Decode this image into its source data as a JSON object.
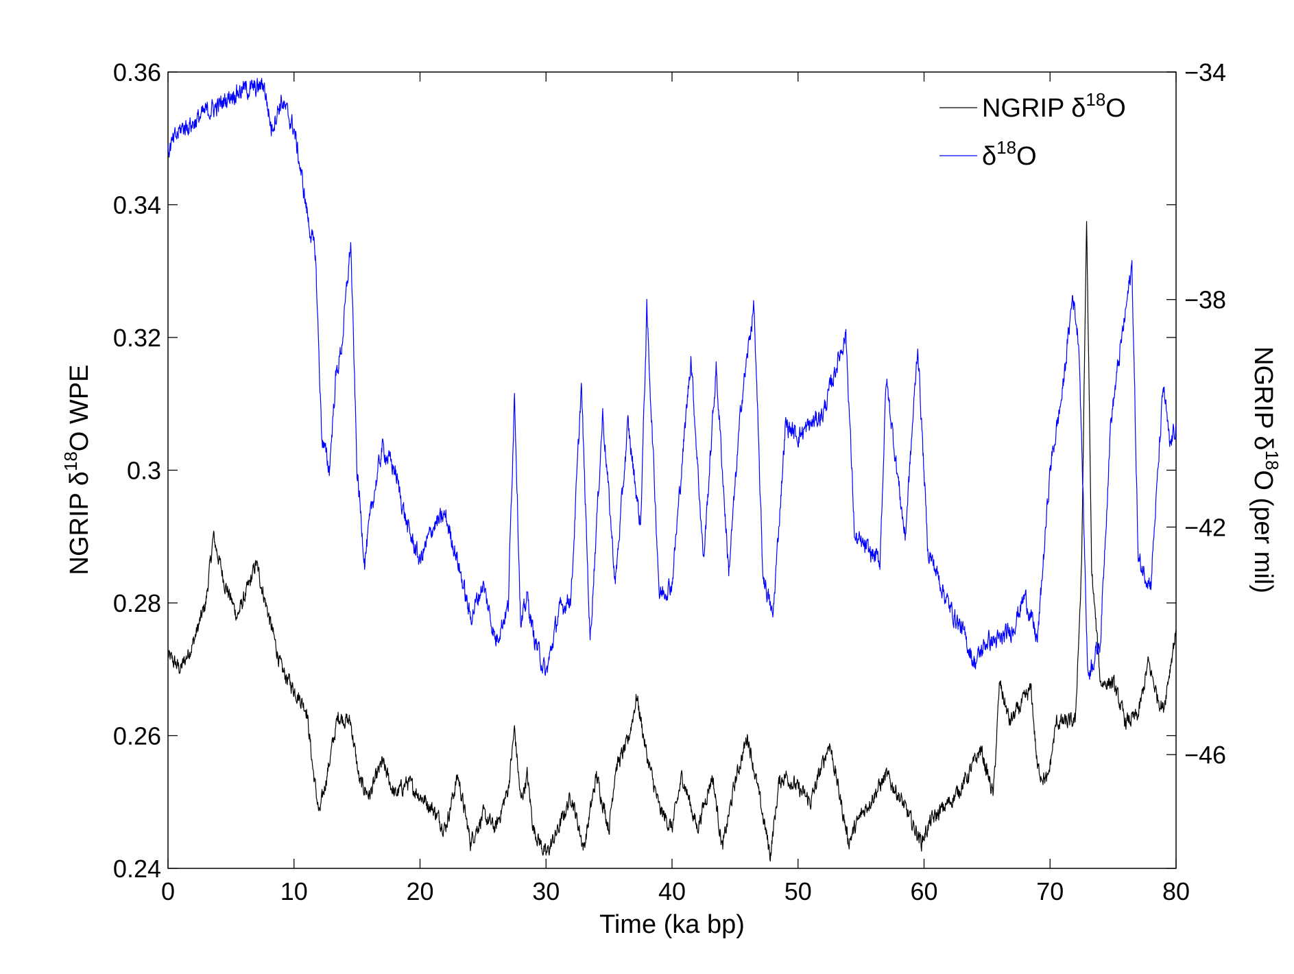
{
  "chart_data": {
    "type": "line",
    "title": "",
    "xlabel": "Time (ka bp)",
    "ylabel_left": {
      "prefix": "NGRIP ",
      "greek": "δ",
      "sup": "18",
      "suffix": "O WPE"
    },
    "ylabel_right": {
      "prefix": "NGRIP ",
      "greek": "δ",
      "sup": "18",
      "suffix": "O (per mil)"
    },
    "xlim": [
      0,
      80
    ],
    "ylim_left": [
      0.24,
      0.36
    ],
    "ylim_right": [
      -48.0,
      -34.0
    ],
    "x_ticks": [
      "0",
      "10",
      "20",
      "30",
      "40",
      "50",
      "60",
      "70",
      "80"
    ],
    "y_ticks_left": [
      "0.24",
      "0.26",
      "0.28",
      "0.3",
      "0.32",
      "0.34",
      "0.36"
    ],
    "y_ticks_right": [
      "−46",
      "−42",
      "−38",
      "−34"
    ],
    "legend_placement": "top-right",
    "grid": false,
    "series": [
      {
        "name": {
          "prefix": "NGRIP ",
          "greek": "δ",
          "sup": "18",
          "suffix": "O"
        },
        "axis": "left",
        "color": "#000000",
        "points": [
          [
            0,
            0.272
          ],
          [
            1,
            0.27
          ],
          [
            2,
            0.274
          ],
          [
            3,
            0.28
          ],
          [
            3.6,
            0.29
          ],
          [
            4.5,
            0.283
          ],
          [
            5.5,
            0.278
          ],
          [
            6.5,
            0.283
          ],
          [
            7,
            0.286
          ],
          [
            8,
            0.278
          ],
          [
            9,
            0.27
          ],
          [
            10,
            0.267
          ],
          [
            11,
            0.264
          ],
          [
            11.5,
            0.255
          ],
          [
            12,
            0.248
          ],
          [
            12.8,
            0.256
          ],
          [
            13.5,
            0.263
          ],
          [
            14.5,
            0.262
          ],
          [
            15.2,
            0.253
          ],
          [
            16,
            0.251
          ],
          [
            17,
            0.256
          ],
          [
            18,
            0.251
          ],
          [
            19,
            0.253
          ],
          [
            20,
            0.251
          ],
          [
            21,
            0.249
          ],
          [
            22,
            0.246
          ],
          [
            23,
            0.254
          ],
          [
            24,
            0.244
          ],
          [
            25,
            0.248
          ],
          [
            26,
            0.246
          ],
          [
            27,
            0.252
          ],
          [
            27.5,
            0.261
          ],
          [
            28,
            0.25
          ],
          [
            28.5,
            0.254
          ],
          [
            29,
            0.246
          ],
          [
            30,
            0.242
          ],
          [
            31,
            0.246
          ],
          [
            32,
            0.251
          ],
          [
            33,
            0.243
          ],
          [
            34,
            0.254
          ],
          [
            35,
            0.246
          ],
          [
            35.5,
            0.255
          ],
          [
            36.5,
            0.259
          ],
          [
            37.2,
            0.266
          ],
          [
            38,
            0.257
          ],
          [
            39,
            0.249
          ],
          [
            40,
            0.246
          ],
          [
            40.8,
            0.254
          ],
          [
            42,
            0.246
          ],
          [
            43.2,
            0.254
          ],
          [
            44,
            0.243
          ],
          [
            45,
            0.253
          ],
          [
            46,
            0.26
          ],
          [
            47,
            0.25
          ],
          [
            47.8,
            0.242
          ],
          [
            48.5,
            0.253
          ],
          [
            49,
            0.254
          ],
          [
            50,
            0.252
          ],
          [
            51,
            0.25
          ],
          [
            52.5,
            0.259
          ],
          [
            53,
            0.254
          ],
          [
            54,
            0.244
          ],
          [
            55,
            0.248
          ],
          [
            56,
            0.251
          ],
          [
            57,
            0.254
          ],
          [
            58,
            0.251
          ],
          [
            59,
            0.247
          ],
          [
            59.8,
            0.244
          ],
          [
            60.5,
            0.247
          ],
          [
            61.5,
            0.249
          ],
          [
            62.5,
            0.251
          ],
          [
            63.5,
            0.254
          ],
          [
            64.5,
            0.258
          ],
          [
            65.5,
            0.251
          ],
          [
            66,
            0.268
          ],
          [
            66.8,
            0.262
          ],
          [
            67.5,
            0.264
          ],
          [
            68.5,
            0.267
          ],
          [
            69,
            0.255
          ],
          [
            69.8,
            0.253
          ],
          [
            70.5,
            0.262
          ],
          [
            71.5,
            0.262
          ],
          [
            72,
            0.262
          ],
          [
            72.5,
            0.285
          ],
          [
            72.9,
            0.338
          ],
          [
            73.3,
            0.285
          ],
          [
            74,
            0.268
          ],
          [
            75,
            0.268
          ],
          [
            76,
            0.262
          ],
          [
            77,
            0.263
          ],
          [
            77.8,
            0.271
          ],
          [
            78.5,
            0.266
          ],
          [
            79,
            0.264
          ],
          [
            79.5,
            0.27
          ],
          [
            80,
            0.276
          ]
        ]
      },
      {
        "name": {
          "prefix": "",
          "greek": "δ",
          "sup": "18",
          "suffix": "O"
        },
        "axis": "right",
        "color": "#0000ff",
        "points": [
          [
            0,
            -35.4
          ],
          [
            1,
            -35.0
          ],
          [
            2,
            -34.9
          ],
          [
            3,
            -34.7
          ],
          [
            4,
            -34.6
          ],
          [
            5,
            -34.4
          ],
          [
            6,
            -34.3
          ],
          [
            7,
            -34.3
          ],
          [
            7.6,
            -34.2
          ],
          [
            8.2,
            -35.0
          ],
          [
            9,
            -34.5
          ],
          [
            10,
            -35.0
          ],
          [
            10.5,
            -35.7
          ],
          [
            11.2,
            -36.7
          ],
          [
            11.7,
            -37.2
          ],
          [
            12.2,
            -40.4
          ],
          [
            12.8,
            -41.0
          ],
          [
            13.3,
            -39.4
          ],
          [
            13.8,
            -38.8
          ],
          [
            14.5,
            -37.0
          ],
          [
            15.0,
            -41.0
          ],
          [
            15.6,
            -42.6
          ],
          [
            16.2,
            -41.6
          ],
          [
            17.0,
            -40.6
          ],
          [
            18.0,
            -41.0
          ],
          [
            19.0,
            -42.0
          ],
          [
            20.0,
            -42.6
          ],
          [
            21.0,
            -42.0
          ],
          [
            22.0,
            -41.8
          ],
          [
            23.0,
            -42.6
          ],
          [
            24.0,
            -43.6
          ],
          [
            25.0,
            -43.0
          ],
          [
            26.0,
            -44.0
          ],
          [
            27.0,
            -43.4
          ],
          [
            27.5,
            -39.6
          ],
          [
            28.0,
            -43.8
          ],
          [
            28.5,
            -43.2
          ],
          [
            29.0,
            -43.9
          ],
          [
            30.0,
            -44.6
          ],
          [
            31.0,
            -43.5
          ],
          [
            32.0,
            -43.2
          ],
          [
            32.8,
            -39.5
          ],
          [
            33.5,
            -44.0
          ],
          [
            34.5,
            -40.0
          ],
          [
            35.5,
            -43.0
          ],
          [
            36.5,
            -40.2
          ],
          [
            37.5,
            -42.0
          ],
          [
            38.0,
            -38.2
          ],
          [
            39.0,
            -43.2
          ],
          [
            40.0,
            -43.0
          ],
          [
            41.5,
            -39.0
          ],
          [
            42.5,
            -42.6
          ],
          [
            43.5,
            -39.2
          ],
          [
            44.5,
            -42.8
          ],
          [
            45.5,
            -39.8
          ],
          [
            46.5,
            -38.1
          ],
          [
            47.2,
            -42.8
          ],
          [
            48.0,
            -43.6
          ],
          [
            49.0,
            -40.2
          ],
          [
            50.0,
            -40.4
          ],
          [
            51.0,
            -40.2
          ],
          [
            52.0,
            -40.0
          ],
          [
            53.0,
            -39.2
          ],
          [
            53.8,
            -38.6
          ],
          [
            54.5,
            -42.2
          ],
          [
            55.5,
            -42.4
          ],
          [
            56.5,
            -42.6
          ],
          [
            57.0,
            -39.4
          ],
          [
            58.5,
            -42.2
          ],
          [
            59.5,
            -38.8
          ],
          [
            60.3,
            -42.4
          ],
          [
            61.0,
            -42.8
          ],
          [
            62.0,
            -43.4
          ],
          [
            63.0,
            -43.8
          ],
          [
            64.0,
            -44.4
          ],
          [
            65.0,
            -44.0
          ],
          [
            66.0,
            -44.0
          ],
          [
            67.0,
            -43.8
          ],
          [
            68.0,
            -43.2
          ],
          [
            69.0,
            -44.0
          ],
          [
            70.0,
            -41.0
          ],
          [
            71.0,
            -39.6
          ],
          [
            71.8,
            -37.9
          ],
          [
            72.3,
            -38.8
          ],
          [
            73.0,
            -44.6
          ],
          [
            74.0,
            -44.0
          ],
          [
            74.8,
            -40.2
          ],
          [
            75.5,
            -39.0
          ],
          [
            76.5,
            -37.4
          ],
          [
            77.0,
            -42.6
          ],
          [
            78.0,
            -43.0
          ],
          [
            79.0,
            -39.5
          ],
          [
            79.5,
            -40.6
          ],
          [
            80.0,
            -40.2
          ]
        ]
      }
    ]
  }
}
